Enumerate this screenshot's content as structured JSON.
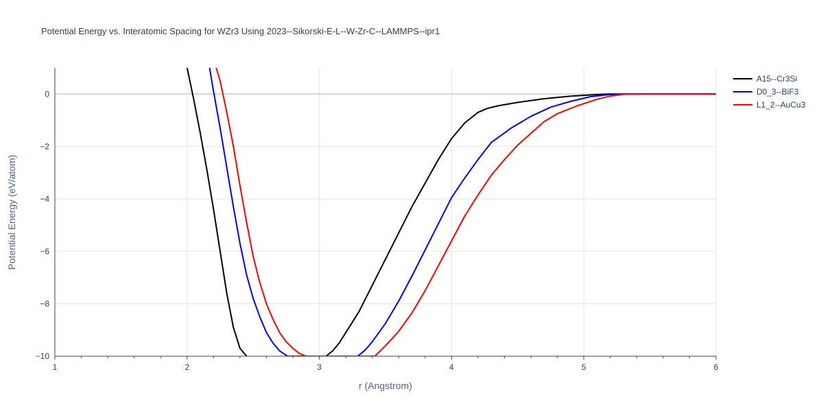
{
  "chart_data": {
    "type": "line",
    "title": "Potential Energy vs. Interatomic Spacing for WZr3 Using 2023--Sikorski-E-L--W-Zr-C--LAMMPS--ipr1",
    "xlabel": "r (Angstrom)",
    "ylabel": "Potential Energy (eV/atom)",
    "xlim": [
      1,
      6
    ],
    "ylim": [
      -10,
      1
    ],
    "x_ticks": [
      1,
      2,
      3,
      4,
      5,
      6
    ],
    "x_tick_labels": [
      "1",
      "2",
      "3",
      "4",
      "5",
      "6"
    ],
    "y_ticks": [
      0,
      -2,
      -4,
      -6,
      -8,
      -10
    ],
    "y_tick_labels": [
      "0",
      "−2",
      "−4",
      "−6",
      "−8",
      "−10"
    ],
    "grid": true,
    "legend_position": "top-right",
    "series": [
      {
        "name": "A15--Cr3Si",
        "color": "#000000",
        "x": [
          2.0,
          2.05,
          2.1,
          2.15,
          2.2,
          2.25,
          2.3,
          2.35,
          2.4,
          2.45,
          2.47,
          3.05,
          3.1,
          3.15,
          3.2,
          3.3,
          3.4,
          3.5,
          3.6,
          3.7,
          3.8,
          3.9,
          4.0,
          4.1,
          4.2,
          4.27,
          4.35,
          4.5,
          4.7,
          4.9,
          5.1,
          5.2,
          5.3,
          5.5,
          6.0
        ],
        "y": [
          1.0,
          -0.2,
          -1.5,
          -2.9,
          -4.4,
          -6.0,
          -7.6,
          -8.9,
          -9.7,
          -10.0,
          -10.05,
          -10.0,
          -9.8,
          -9.5,
          -9.1,
          -8.3,
          -7.3,
          -6.3,
          -5.3,
          -4.3,
          -3.4,
          -2.5,
          -1.7,
          -1.1,
          -0.7,
          -0.55,
          -0.45,
          -0.32,
          -0.18,
          -0.08,
          -0.02,
          0.0,
          0.0,
          0.0,
          0.0
        ]
      },
      {
        "name": "D0_3--BiF3",
        "color": "#0000ff",
        "x": [
          2.17,
          2.2,
          2.25,
          2.3,
          2.35,
          2.4,
          2.45,
          2.5,
          2.55,
          2.6,
          2.65,
          2.7,
          2.76,
          3.29,
          3.35,
          3.4,
          3.5,
          3.6,
          3.7,
          3.8,
          3.9,
          4.0,
          4.1,
          4.2,
          4.3,
          4.45,
          4.6,
          4.75,
          4.9,
          5.05,
          5.2,
          5.3,
          5.5,
          6.0
        ],
        "y": [
          1.0,
          0.1,
          -1.3,
          -2.8,
          -4.3,
          -5.7,
          -6.9,
          -7.8,
          -8.5,
          -9.1,
          -9.5,
          -9.8,
          -10.0,
          -10.0,
          -9.75,
          -9.45,
          -8.75,
          -7.9,
          -6.95,
          -5.95,
          -4.95,
          -3.95,
          -3.2,
          -2.5,
          -1.85,
          -1.3,
          -0.85,
          -0.5,
          -0.28,
          -0.1,
          -0.02,
          0.0,
          0.0,
          0.0
        ]
      },
      {
        "name": "L1_2--AuCu3",
        "color": "#ff0000",
        "x": [
          2.22,
          2.25,
          2.3,
          2.35,
          2.4,
          2.45,
          2.5,
          2.55,
          2.6,
          2.65,
          2.7,
          2.75,
          2.8,
          2.85,
          2.9,
          3.42,
          3.45,
          3.5,
          3.6,
          3.7,
          3.8,
          3.9,
          4.0,
          4.1,
          4.2,
          4.3,
          4.4,
          4.5,
          4.6,
          4.7,
          4.8,
          4.95,
          5.1,
          5.2,
          5.3,
          5.5,
          6.0
        ],
        "y": [
          1.0,
          0.5,
          -0.7,
          -2.0,
          -3.5,
          -4.9,
          -6.2,
          -7.2,
          -8.0,
          -8.6,
          -9.1,
          -9.45,
          -9.7,
          -9.9,
          -10.0,
          -10.0,
          -9.85,
          -9.6,
          -9.05,
          -8.35,
          -7.5,
          -6.55,
          -5.6,
          -4.65,
          -3.85,
          -3.1,
          -2.5,
          -1.95,
          -1.5,
          -1.05,
          -0.75,
          -0.45,
          -0.2,
          -0.08,
          -0.01,
          0.0,
          0.0
        ]
      }
    ]
  }
}
